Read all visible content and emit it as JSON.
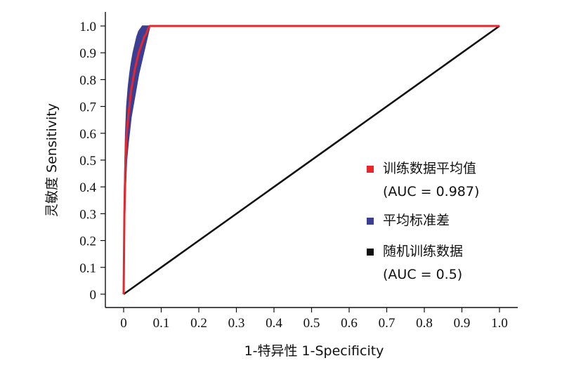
{
  "chart_data": {
    "type": "line",
    "xlabel": "1-特异性 1-Specificity",
    "ylabel": "灵敏度 Sensitivity",
    "xlim": [
      0,
      1
    ],
    "ylim": [
      0,
      1
    ],
    "x_ticks": [
      "0",
      "0.1",
      "0.2",
      "0.3",
      "0.4",
      "0.5",
      "0.6",
      "0.7",
      "0.8",
      "0.9",
      "1.0"
    ],
    "y_ticks": [
      "0",
      "0.1",
      "0.2",
      "0.3",
      "0.4",
      "0.5",
      "0.6",
      "0.7",
      "0.8",
      "0.9",
      "1.0"
    ],
    "grid": false,
    "legend_position": "bottom-right",
    "series": [
      {
        "name": "训练数据平均值",
        "name_line2": "(AUC = 0.987)",
        "color": "#e8262b",
        "x": [
          0.0,
          0.002,
          0.005,
          0.008,
          0.012,
          0.016,
          0.02,
          0.025,
          0.03,
          0.035,
          0.04,
          0.045,
          0.05,
          0.055,
          0.06,
          0.065,
          0.07,
          1.0
        ],
        "y": [
          0.0,
          0.3,
          0.5,
          0.6,
          0.66,
          0.71,
          0.76,
          0.8,
          0.84,
          0.87,
          0.9,
          0.92,
          0.94,
          0.96,
          0.97,
          0.99,
          1.0,
          1.0
        ]
      },
      {
        "name": "平均标准差",
        "color": "#3b3f93",
        "x": [
          0.0,
          0.002,
          0.005,
          0.008,
          0.012,
          0.016,
          0.02,
          0.025,
          0.03,
          0.035,
          0.04,
          0.045,
          0.05,
          0.055,
          0.06,
          0.065,
          0.07
        ],
        "y_upper": [
          0.02,
          0.4,
          0.6,
          0.7,
          0.77,
          0.82,
          0.86,
          0.9,
          0.93,
          0.96,
          0.98,
          0.99,
          1.0,
          1.0,
          1.0,
          1.0,
          1.0
        ],
        "y_lower": [
          0.0,
          0.22,
          0.4,
          0.5,
          0.56,
          0.61,
          0.66,
          0.7,
          0.74,
          0.78,
          0.82,
          0.85,
          0.88,
          0.91,
          0.94,
          0.97,
          1.0
        ]
      },
      {
        "name": "随机训练数据",
        "name_line2": "(AUC = 0.5)",
        "color": "#111111",
        "x": [
          0.0,
          1.0
        ],
        "y": [
          0.0,
          1.0
        ]
      }
    ]
  }
}
